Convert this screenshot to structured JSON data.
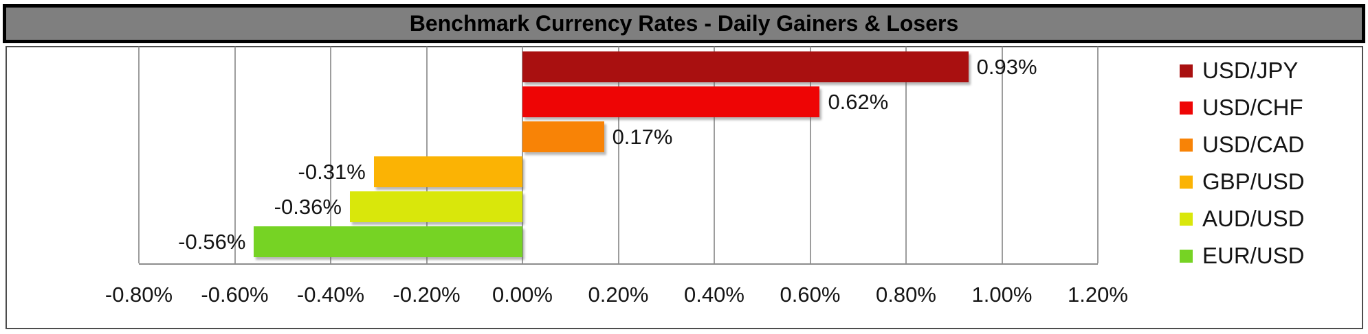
{
  "title": "Benchmark Currency Rates - Daily Gainers & Losers",
  "chart_data": {
    "type": "bar",
    "orientation": "horizontal",
    "title": "Benchmark Currency Rates - Daily Gainers & Losers",
    "categories": [
      "USD/JPY",
      "USD/CHF",
      "USD/CAD",
      "GBP/USD",
      "AUD/USD",
      "EUR/USD"
    ],
    "values": [
      0.93,
      0.62,
      0.17,
      -0.31,
      -0.36,
      -0.56
    ],
    "data_labels": [
      "0.93%",
      "0.62%",
      "0.17%",
      "-0.31%",
      "-0.36%",
      "-0.56%"
    ],
    "bar_colors": [
      "#a91010",
      "#ee0505",
      "#f88306",
      "#fbb304",
      "#d9e70b",
      "#76d324"
    ],
    "x_ticks": [
      "-0.80%",
      "-0.60%",
      "-0.40%",
      "-0.20%",
      "0.00%",
      "0.20%",
      "0.40%",
      "0.60%",
      "0.80%",
      "1.00%",
      "1.20%"
    ],
    "x_tick_values": [
      -0.8,
      -0.6,
      -0.4,
      -0.2,
      0.0,
      0.2,
      0.4,
      0.6,
      0.8,
      1.0,
      1.2
    ],
    "xlim": [
      -0.8,
      1.2
    ],
    "grid": true,
    "legend_position": "right",
    "legend": [
      {
        "label": "USD/JPY",
        "color": "#a91010"
      },
      {
        "label": "USD/CHF",
        "color": "#ee0505"
      },
      {
        "label": "USD/CAD",
        "color": "#f88306"
      },
      {
        "label": "GBP/USD",
        "color": "#fbb304"
      },
      {
        "label": "AUD/USD",
        "color": "#d9e70b"
      },
      {
        "label": "EUR/USD",
        "color": "#76d324"
      }
    ]
  },
  "style": {
    "title_bg": "#7f7f7f",
    "title_border": "#000000",
    "gridline_color": "#9d9d9d",
    "axis_line_color": "#8c8c8c",
    "frame_border": "#4d4d4d",
    "text_color": "#141414"
  }
}
